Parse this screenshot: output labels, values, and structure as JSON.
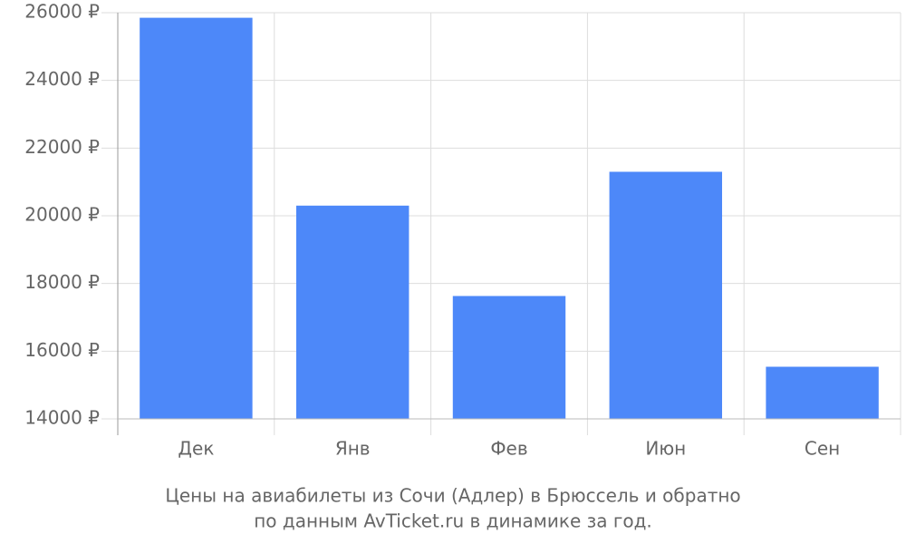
{
  "chart_data": {
    "type": "bar",
    "title": [
      "Цены на авиабилеты из Сочи (Адлер) в Брюссель и обратно",
      "по данным AvTicket.ru в динамике за год."
    ],
    "categories": [
      "Дек",
      "Янв",
      "Фев",
      "Июн",
      "Сен"
    ],
    "values": [
      25850,
      20300,
      17630,
      21300,
      15540
    ],
    "color": "#4d88f9",
    "ylim": [
      14000,
      26000
    ],
    "yticks": [
      {
        "value": 14000,
        "label": "14000 ₽"
      },
      {
        "value": 16000,
        "label": "16000 ₽"
      },
      {
        "value": 18000,
        "label": "18000 ₽"
      },
      {
        "value": 20000,
        "label": "20000 ₽"
      },
      {
        "value": 22000,
        "label": "22000 ₽"
      },
      {
        "value": 24000,
        "label": "24000 ₽"
      },
      {
        "value": 26000,
        "label": "26000 ₽"
      }
    ],
    "grid": true
  }
}
